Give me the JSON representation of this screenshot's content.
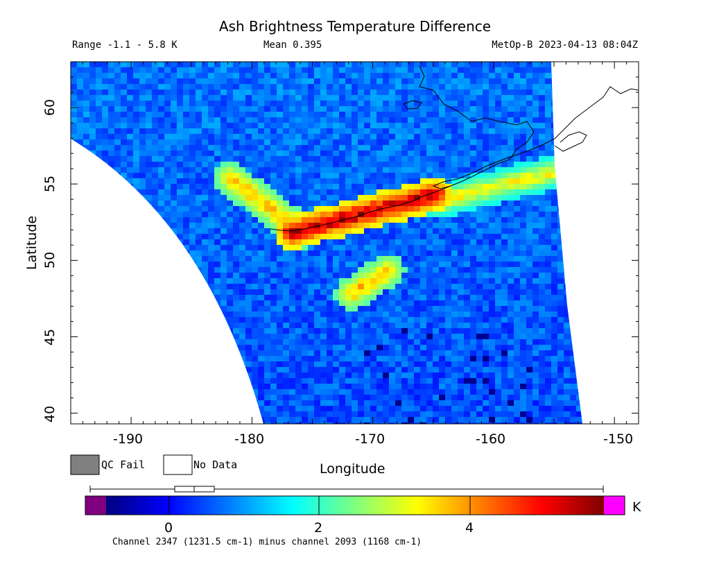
{
  "title": "Ash Brightness Temperature Difference",
  "header": {
    "range": "Range -1.1 - 5.8 K",
    "mean": "Mean 0.395",
    "satellite_time": "MetOp-B 2023-04-13 08:04Z"
  },
  "axes": {
    "xlabel": "Longitude",
    "ylabel": "Latitude",
    "x_ticks": [
      "-190",
      "-180",
      "-170",
      "-160",
      "-150"
    ],
    "y_ticks": [
      "40",
      "45",
      "50",
      "55",
      "60"
    ],
    "xlim": [
      -195,
      -148
    ],
    "ylim": [
      39.3,
      63
    ]
  },
  "legend": {
    "qc_fail": "QC Fail",
    "no_data": "No Data",
    "qc_fail_color": "#808080",
    "no_data_color": "#ffffff"
  },
  "colorbar": {
    "ticks": [
      "0",
      "2",
      "4"
    ],
    "unit": "K",
    "range": [
      -1.1,
      5.8
    ],
    "under_color": "#800080",
    "over_color": "#ff00ff",
    "boxplot": {
      "min": -1.1,
      "q1": 0.07,
      "median": 0.3,
      "q3": 0.6,
      "max": 5.8
    }
  },
  "caption": "Channel 2347 (1231.5 cm-1) minus channel 2093 (1168 cm-1)",
  "chart_data": {
    "type": "heatmap",
    "field": "Ash brightness temperature difference (K)",
    "ash_plume_features": [
      {
        "lon": [
          -182,
          -176
        ],
        "lat": [
          55.5,
          52
        ],
        "value_range": [
          2,
          4
        ]
      },
      {
        "lon": [
          -177,
          -165
        ],
        "lat": [
          52,
          54.5
        ],
        "value_range": [
          3,
          5.8
        ]
      },
      {
        "lon": [
          -165,
          -155
        ],
        "lat": [
          54,
          56
        ],
        "value_range": [
          1.5,
          3.5
        ]
      },
      {
        "lon": [
          -172,
          -169
        ],
        "lat": [
          48,
          49.5
        ],
        "value_range": [
          2,
          4
        ]
      }
    ],
    "background_value_range": [
      -0.5,
      1
    ]
  }
}
